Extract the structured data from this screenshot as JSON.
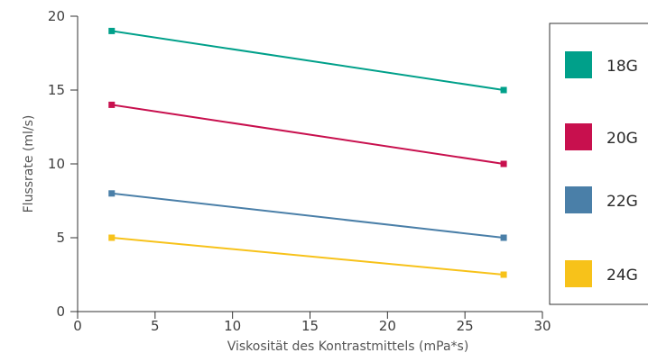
{
  "chart_data": {
    "type": "line",
    "xlabel": "Viskosität des Kontrastmittels (mPa*s)",
    "ylabel": "Flussrate (ml/s)",
    "xlim": [
      0,
      30
    ],
    "ylim": [
      0,
      20
    ],
    "x_ticks": [
      0,
      5,
      10,
      15,
      20,
      25,
      30
    ],
    "y_ticks": [
      0,
      5,
      10,
      15,
      20
    ],
    "grid": false,
    "legend_position": "right",
    "series": [
      {
        "name": "18G",
        "color": "#00a08a",
        "x": [
          2.2,
          27.5
        ],
        "y": [
          19,
          15
        ]
      },
      {
        "name": "20G",
        "color": "#c8104e",
        "x": [
          2.2,
          27.5
        ],
        "y": [
          14,
          10
        ]
      },
      {
        "name": "22G",
        "color": "#4a7fa8",
        "x": [
          2.2,
          27.5
        ],
        "y": [
          8,
          5
        ]
      },
      {
        "name": "24G",
        "color": "#f7c21a",
        "x": [
          2.2,
          27.5
        ],
        "y": [
          5,
          2.5
        ]
      }
    ]
  }
}
